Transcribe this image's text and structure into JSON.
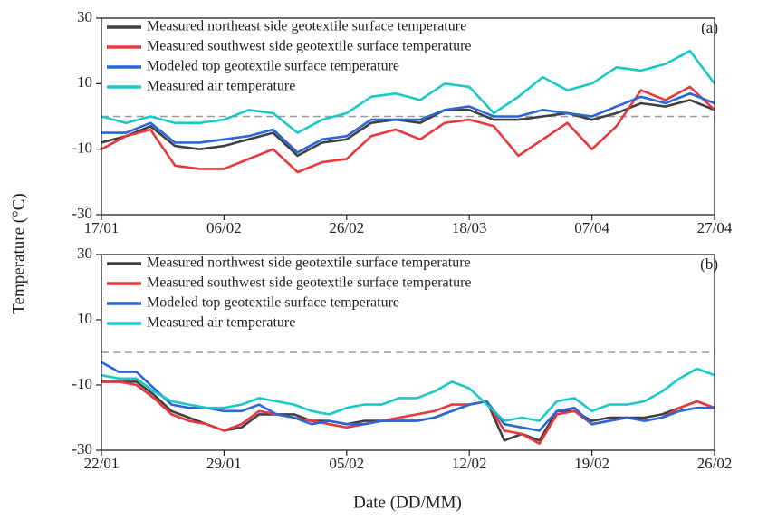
{
  "ylabel": "Temperature (°C)",
  "xlabel": "Date (DD/MM)",
  "chart_data": [
    {
      "type": "line",
      "annotation": "(a)",
      "hline": 0,
      "x": [
        0,
        4,
        8,
        12,
        16,
        20,
        24,
        28,
        32,
        36,
        40,
        44,
        48,
        52,
        56,
        60,
        64,
        68,
        72,
        76,
        80,
        84,
        88,
        92,
        96,
        100
      ],
      "xlim": [
        0,
        100
      ],
      "xticks": [
        {
          "value": 0,
          "label": "17/01"
        },
        {
          "value": 20,
          "label": "06/02"
        },
        {
          "value": 40,
          "label": "26/02"
        },
        {
          "value": 60,
          "label": "18/03"
        },
        {
          "value": 80,
          "label": "07/04"
        },
        {
          "value": 100,
          "label": "27/04"
        }
      ],
      "ylim": [
        -30,
        30
      ],
      "yticks": [
        -30,
        -10,
        10,
        30
      ],
      "series": [
        {
          "name": "Measured northeast side geotextile surface temperature",
          "color": "#404040",
          "values": [
            -8,
            -6,
            -3,
            -9,
            -10,
            -9,
            -7,
            -5,
            -12,
            -8,
            -7,
            -2,
            -1,
            -2,
            2,
            2,
            -1,
            -1,
            0,
            1,
            -1,
            1,
            4,
            3,
            5,
            2
          ]
        },
        {
          "name": "Measured southwest side geotextile surface temperature",
          "color": "#e8383d",
          "values": [
            -10,
            -6,
            -4,
            -15,
            -16,
            -16,
            -13,
            -10,
            -17,
            -14,
            -13,
            -6,
            -4,
            -7,
            -2,
            -1,
            -3,
            -12,
            -7,
            -2,
            -10,
            -3,
            8,
            5,
            9,
            2
          ]
        },
        {
          "name": "Modeled top geotextile surface temperature",
          "color": "#2a66d6",
          "values": [
            -5,
            -5,
            -2,
            -8,
            -8,
            -7,
            -6,
            -4,
            -11,
            -7,
            -6,
            -1,
            -1,
            -1,
            2,
            3,
            0,
            0,
            2,
            1,
            0,
            3,
            6,
            4,
            7,
            4
          ]
        },
        {
          "name": "Measured air temperature",
          "color": "#1cc7c7",
          "values": [
            0,
            -2,
            0,
            -2,
            -2,
            -1,
            2,
            1,
            -5,
            -1,
            1,
            6,
            7,
            5,
            10,
            9,
            1,
            6,
            12,
            8,
            10,
            15,
            14,
            16,
            20,
            10
          ]
        }
      ]
    },
    {
      "type": "line",
      "annotation": "(b)",
      "hline": 0,
      "x": [
        0,
        1,
        2,
        3,
        4,
        5,
        6,
        7,
        8,
        9,
        10,
        11,
        12,
        13,
        14,
        15,
        16,
        17,
        18,
        19,
        20,
        21,
        22,
        23,
        24,
        25,
        26,
        27,
        28,
        29,
        30,
        31,
        32,
        33,
        34,
        35
      ],
      "xlim": [
        0,
        35
      ],
      "xticks": [
        {
          "value": 0,
          "label": "22/01"
        },
        {
          "value": 7,
          "label": "29/01"
        },
        {
          "value": 14,
          "label": "05/02"
        },
        {
          "value": 21,
          "label": "12/02"
        },
        {
          "value": 28,
          "label": "19/02"
        },
        {
          "value": 35,
          "label": "26/02"
        }
      ],
      "ylim": [
        -30,
        30
      ],
      "yticks": [
        -30,
        -10,
        10,
        30
      ],
      "series": [
        {
          "name": "Measured northwest side geotextile surface temperature",
          "color": "#404040",
          "values": [
            -9,
            -9,
            -9,
            -13,
            -18,
            -20,
            -22,
            -24,
            -23,
            -19,
            -19,
            -19,
            -21,
            -21,
            -22,
            -21,
            -21,
            -21,
            -21,
            -20,
            -18,
            -16,
            -15,
            -27,
            -25,
            -27,
            -18,
            -18,
            -21,
            -20,
            -20,
            -20,
            -19,
            -17,
            -15,
            -17
          ]
        },
        {
          "name": "Measured southwest side geotextile surface temperature",
          "color": "#e8383d",
          "values": [
            -9,
            -9,
            -10,
            -14,
            -19,
            -21,
            -22,
            -24,
            -22,
            -18,
            -19,
            -20,
            -21,
            -22,
            -23,
            -22,
            -21,
            -20,
            -19,
            -18,
            -16,
            -16,
            -15,
            -24,
            -25,
            -28,
            -19,
            -18,
            -22,
            -21,
            -20,
            -21,
            -20,
            -17,
            -15,
            -17
          ]
        },
        {
          "name": "Modeled top geotextile surface temperature",
          "color": "#2a66d6",
          "values": [
            -3,
            -6,
            -6,
            -11,
            -16,
            -17,
            -17,
            -18,
            -18,
            -16,
            -19,
            -20,
            -22,
            -21,
            -22,
            -22,
            -21,
            -21,
            -21,
            -20,
            -18,
            -16,
            -15,
            -22,
            -23,
            -24,
            -18,
            -17,
            -22,
            -21,
            -20,
            -21,
            -20,
            -18,
            -17,
            -17
          ]
        },
        {
          "name": "Measured air temperature",
          "color": "#1cc7c7",
          "values": [
            -7,
            -8,
            -8,
            -12,
            -15,
            -16,
            -17,
            -17,
            -16,
            -14,
            -15,
            -16,
            -18,
            -19,
            -17,
            -16,
            -16,
            -14,
            -14,
            -12,
            -9,
            -11,
            -16,
            -21,
            -20,
            -21,
            -15,
            -14,
            -18,
            -16,
            -16,
            -15,
            -12,
            -8,
            -5,
            -7
          ]
        }
      ]
    }
  ]
}
